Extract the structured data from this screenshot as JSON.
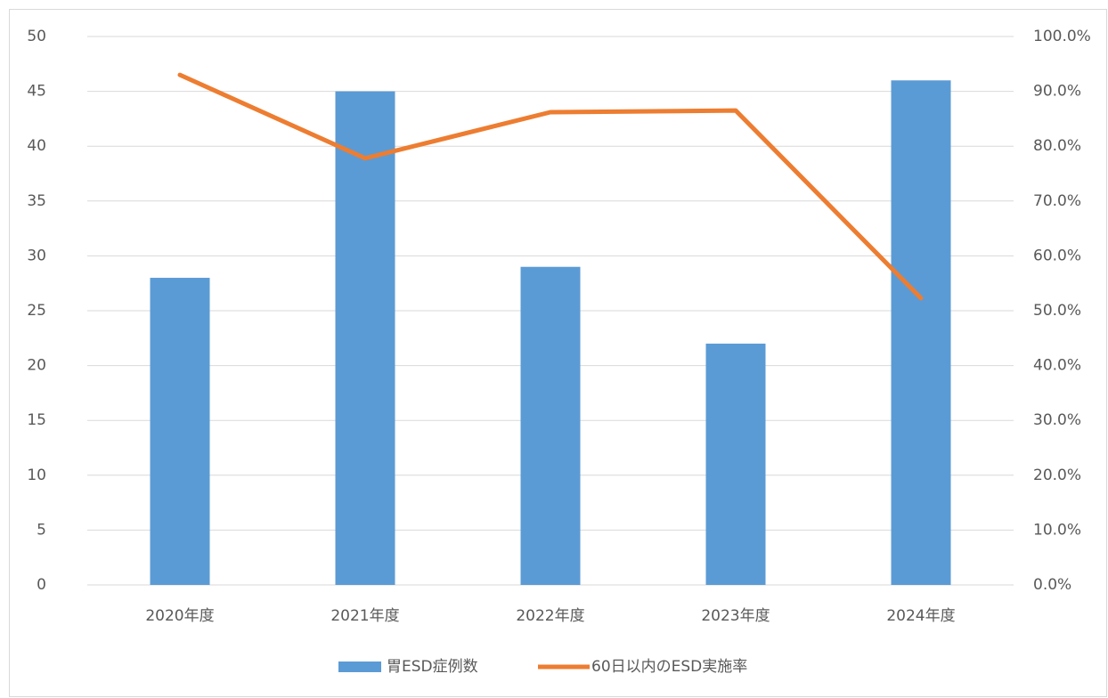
{
  "chart_data": {
    "type": "bar",
    "categories": [
      "2020年度",
      "2021年度",
      "2022年度",
      "2023年度",
      "2024年度"
    ],
    "series": [
      {
        "name": "胃ESD症例数",
        "type": "bar",
        "color": "#5b9bd5",
        "values": [
          28,
          45,
          29,
          22,
          46
        ]
      },
      {
        "name": "60日以内のESD実施率",
        "type": "line",
        "axis": "y2",
        "color": "#ed7d31",
        "values": [
          93.0,
          77.8,
          86.2,
          86.5,
          52.3
        ]
      }
    ],
    "ylim": [
      0,
      50
    ],
    "yticks": [
      0,
      5,
      10,
      15,
      20,
      25,
      30,
      35,
      40,
      45,
      50
    ],
    "y2lim": [
      0,
      100
    ],
    "y2ticks": [
      {
        "value": 0,
        "label": "0.0%"
      },
      {
        "value": 10,
        "label": "10.0%"
      },
      {
        "value": 20,
        "label": "20.0%"
      },
      {
        "value": 30,
        "label": "30.0%"
      },
      {
        "value": 40,
        "label": "40.0%"
      },
      {
        "value": 50,
        "label": "50.0%"
      },
      {
        "value": 60,
        "label": "60.0%"
      },
      {
        "value": 70,
        "label": "70.0%"
      },
      {
        "value": 80,
        "label": "80.0%"
      },
      {
        "value": 90,
        "label": "90.0%"
      },
      {
        "value": 100,
        "label": "100.0%"
      }
    ],
    "grid": true,
    "legend": "bottom"
  }
}
